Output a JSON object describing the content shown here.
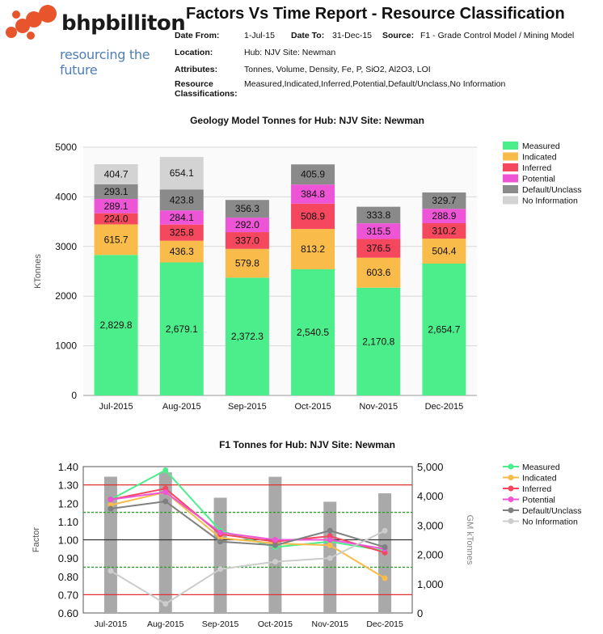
{
  "logo": {
    "brand": "bhpbilliton",
    "tagline": "resourcing the future"
  },
  "header": {
    "title": "Factors Vs Time Report - Resource Classification",
    "date_from_label": "Date From:",
    "date_from": "1-Jul-15",
    "date_to_label": "Date To:",
    "date_to": "31-Dec-15",
    "source_label": "Source:",
    "source": "F1 - Grade Control Model / Mining Model",
    "location_label": "Location:",
    "location": "Hub: NJV  Site: Newman",
    "attributes_label": "Attributes:",
    "attributes": "Tonnes, Volume, Density, Fe, P, SiO2, Al2O3, LOI",
    "rc_label_1": "Resource",
    "rc_label_2": "Classifications:",
    "resource_classifications": "Measured,Indicated,Inferred,Potential,Default/Unclass,No Information"
  },
  "chart_data": [
    {
      "type": "bar",
      "stacked": true,
      "title": "Geology Model Tonnes for Hub: NJV  Site: Newman",
      "ylabel": "KTonnes",
      "xlabel": "",
      "ylim": [
        0,
        5000
      ],
      "yticks": [
        "0",
        "1000",
        "2000",
        "3000",
        "4000",
        "5000"
      ],
      "grid": true,
      "legend_position": "right",
      "categories": [
        "Jul-2015",
        "Aug-2015",
        "Sep-2015",
        "Oct-2015",
        "Nov-2015",
        "Dec-2015"
      ],
      "series": [
        {
          "name": "Measured",
          "color": "#4cee8c",
          "values": [
            2829.8,
            2679.1,
            2372.3,
            2540.5,
            2170.8,
            2654.7
          ],
          "labels": [
            "2,829.8",
            "2,679.1",
            "2,372.3",
            "2,540.5",
            "2,170.8",
            "2,654.7"
          ]
        },
        {
          "name": "Indicated",
          "color": "#f9bb4a",
          "values": [
            615.7,
            436.3,
            579.8,
            813.2,
            603.6,
            504.4
          ],
          "labels": [
            "615.7",
            "436.3",
            "579.8",
            "813.2",
            "603.6",
            "504.4"
          ]
        },
        {
          "name": "Inferred",
          "color": "#f5475d",
          "values": [
            224.0,
            325.8,
            337.0,
            508.9,
            376.5,
            310.2
          ],
          "labels": [
            "224.0",
            "325.8",
            "337.0",
            "508.9",
            "376.5",
            "310.2"
          ]
        },
        {
          "name": "Potential",
          "color": "#ee55d6",
          "values": [
            289.1,
            284.1,
            292.0,
            384.8,
            315.5,
            288.9
          ],
          "labels": [
            "289.1",
            "284.1",
            "292.0",
            "384.8",
            "315.5",
            "288.9"
          ]
        },
        {
          "name": "Default/Unclass",
          "color": "#8a8a8a",
          "values": [
            293.1,
            423.8,
            356.3,
            405.9,
            333.8,
            329.7
          ],
          "labels": [
            "293.1",
            "423.8",
            "356.3",
            "405.9",
            "333.8",
            "329.7"
          ]
        },
        {
          "name": "No Information",
          "color": "#d3d3d3",
          "values": [
            404.7,
            654.1,
            0,
            0,
            0,
            0
          ],
          "labels": [
            "404.7",
            "654.1",
            "",
            "",
            "",
            ""
          ]
        }
      ]
    },
    {
      "type": "line",
      "title": "F1 Tonnes for Hub: NJV  Site: Newman",
      "ylabel": "Factor",
      "y2label": "GM kTonnes",
      "ylim": [
        0.6,
        1.4
      ],
      "yticks": [
        "0.60",
        "0.70",
        "0.80",
        "0.90",
        "1.00",
        "1.10",
        "1.20",
        "1.30",
        "1.40"
      ],
      "y2lim": [
        0,
        5000
      ],
      "y2ticks": [
        "0",
        "1,000",
        "2,000",
        "3,000",
        "4,000",
        "5,000"
      ],
      "reference_lines": [
        {
          "value": 1.3,
          "color": "#e03030",
          "style": "solid"
        },
        {
          "value": 1.15,
          "color": "#2ea02e",
          "style": "dashed"
        },
        {
          "value": 1.0,
          "color": "#333333",
          "style": "solid"
        },
        {
          "value": 0.85,
          "color": "#2ea02e",
          "style": "dashed"
        },
        {
          "value": 0.7,
          "color": "#e03030",
          "style": "solid"
        }
      ],
      "legend_position": "right",
      "categories": [
        "Jul-2015",
        "Aug-2015",
        "Sep-2015",
        "Oct-2015",
        "Nov-2015",
        "Dec-2015"
      ],
      "bars": {
        "name": "GM kTonnes",
        "color": "#a9a9a9",
        "values": [
          4656,
          4803,
          3937,
          4653,
          3800,
          4088
        ]
      },
      "series": [
        {
          "name": "Measured",
          "color": "#4cee8c",
          "values": [
            1.22,
            1.38,
            1.05,
            0.96,
            0.99,
            0.94
          ]
        },
        {
          "name": "Indicated",
          "color": "#f9bb4a",
          "values": [
            1.19,
            1.26,
            1.01,
            0.98,
            0.97,
            0.79
          ]
        },
        {
          "name": "Inferred",
          "color": "#f5475d",
          "values": [
            1.22,
            1.28,
            1.03,
            0.99,
            1.02,
            0.93
          ]
        },
        {
          "name": "Potential",
          "color": "#ee55d6",
          "values": [
            1.22,
            1.26,
            1.04,
            1.0,
            1.0,
            0.95
          ]
        },
        {
          "name": "Default/Unclass",
          "color": "#808080",
          "values": [
            1.17,
            1.21,
            0.99,
            0.97,
            1.05,
            0.96
          ]
        },
        {
          "name": "No Information",
          "color": "#cccccc",
          "values": [
            0.83,
            0.65,
            0.84,
            0.88,
            0.9,
            1.05
          ]
        }
      ]
    }
  ]
}
